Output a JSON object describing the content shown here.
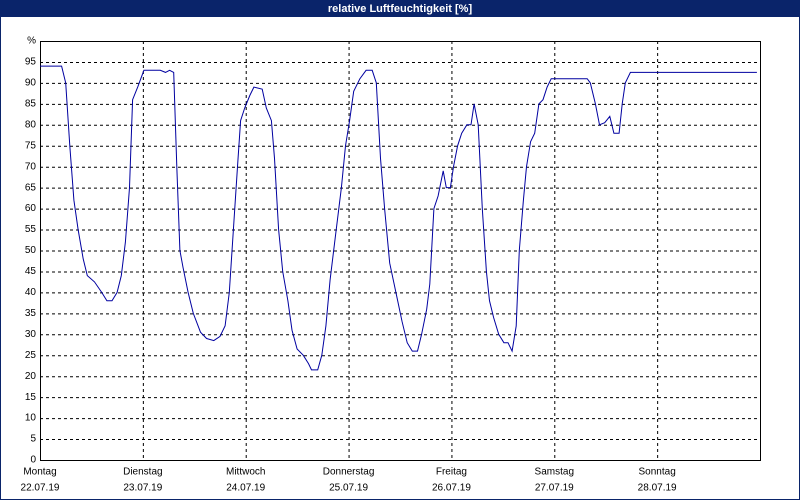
{
  "chart_data": {
    "type": "line",
    "title": "relative Luftfeuchtigkeit [%]",
    "color": "#0000a0",
    "x": [
      0,
      0.21,
      0.25,
      0.29,
      0.33,
      0.37,
      0.42,
      0.46,
      0.53,
      0.6,
      0.65,
      0.7,
      0.75,
      0.79,
      0.83,
      0.87,
      0.9,
      0.95,
      1.01,
      1.17,
      1.22,
      1.26,
      1.3,
      1.33,
      1.36,
      1.39,
      1.44,
      1.49,
      1.56,
      1.62,
      1.69,
      1.75,
      1.8,
      1.84,
      1.88,
      1.92,
      1.95,
      1.99,
      2.04,
      2.08,
      2.16,
      2.2,
      2.25,
      2.28,
      2.32,
      2.36,
      2.41,
      2.45,
      2.5,
      2.56,
      2.61,
      2.64,
      2.7,
      2.74,
      2.78,
      2.82,
      2.87,
      2.93,
      2.97,
      3.01,
      3.05,
      3.11,
      3.17,
      3.23,
      3.27,
      3.31,
      3.35,
      3.4,
      3.46,
      3.52,
      3.57,
      3.62,
      3.67,
      3.71,
      3.76,
      3.79,
      3.83,
      3.87,
      3.92,
      3.95,
      3.99,
      4.02,
      4.06,
      4.1,
      4.15,
      4.19,
      4.22,
      4.26,
      4.3,
      4.34,
      4.37,
      4.41,
      4.46,
      4.51,
      4.55,
      4.59,
      4.63,
      4.66,
      4.7,
      4.73,
      4.77,
      4.81,
      4.85,
      4.89,
      4.93,
      4.97,
      5.32,
      5.35,
      5.4,
      5.44,
      5.49,
      5.54,
      5.58,
      5.63,
      5.66,
      5.69,
      5.74,
      6.97
    ],
    "values": [
      94,
      94,
      90,
      75,
      62,
      55,
      48,
      44,
      42.5,
      40,
      38,
      38,
      40,
      44,
      52,
      65,
      86,
      89,
      93,
      93,
      92.5,
      93,
      92.5,
      70,
      50,
      46,
      40,
      35,
      30.5,
      29,
      28.5,
      29.5,
      32,
      40,
      55,
      70,
      81,
      84,
      87,
      89,
      88.5,
      84,
      81,
      72,
      55,
      45,
      38,
      31,
      26.5,
      25,
      23,
      21.5,
      21.5,
      25,
      32,
      43,
      53,
      65,
      75,
      81,
      88,
      91,
      93,
      93,
      90,
      72,
      60,
      47,
      40,
      33,
      28,
      26,
      26,
      30,
      36,
      42,
      60,
      63,
      69,
      65,
      65,
      70,
      75,
      78,
      80,
      80,
      85,
      80,
      60,
      45,
      38,
      34,
      30,
      28,
      28,
      26,
      32,
      50,
      62,
      70,
      76,
      78,
      85,
      86,
      89,
      91,
      91,
      90,
      85,
      80,
      80.5,
      82,
      78,
      78,
      85,
      90,
      92.5,
      92.5
    ],
    "xlim": [
      0,
      7
    ],
    "xticks": [
      {
        "value": 0,
        "label": "Montag",
        "date": "22.07.19"
      },
      {
        "value": 1,
        "label": "Dienstag",
        "date": "23.07.19"
      },
      {
        "value": 2,
        "label": "Mittwoch",
        "date": "24.07.19"
      },
      {
        "value": 3,
        "label": "Donnerstag",
        "date": "25.07.19"
      },
      {
        "value": 4,
        "label": "Freitag",
        "date": "26.07.19"
      },
      {
        "value": 5,
        "label": "Samstag",
        "date": "27.07.19"
      },
      {
        "value": 6,
        "label": "Sonntag",
        "date": "28.07.19"
      }
    ],
    "ylim": [
      0,
      100
    ],
    "yticks": [
      0,
      5,
      10,
      15,
      20,
      25,
      30,
      35,
      40,
      45,
      50,
      55,
      60,
      65,
      70,
      75,
      80,
      85,
      90,
      95,
      {
        "value": 100,
        "label": "%"
      }
    ],
    "grid": true
  }
}
